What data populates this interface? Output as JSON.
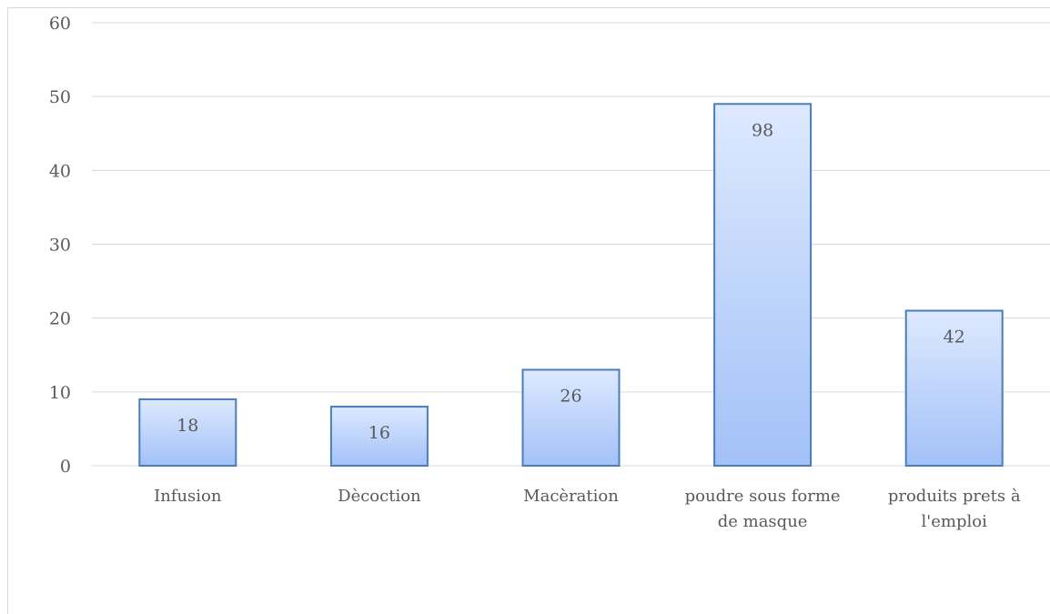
{
  "chart_data": {
    "type": "bar",
    "categories": [
      [
        "Infusion"
      ],
      [
        "Dècoction"
      ],
      [
        "Macèration"
      ],
      [
        "poudre sous forme",
        "de masque"
      ],
      [
        "produits prets à",
        "l'emploi"
      ]
    ],
    "values": [
      9,
      8,
      13,
      49,
      21
    ],
    "data_labels": [
      "18",
      "16",
      "26",
      "98",
      "42"
    ],
    "ylim": [
      0,
      60
    ],
    "yticks": [
      "0",
      "10",
      "20",
      "30",
      "40",
      "50",
      "60"
    ],
    "grid": true,
    "legend": "none",
    "colors": {
      "bar_top": "#dde9ff",
      "bar_bottom": "#a3c1f7",
      "bar_border": "#4a7ebb",
      "grid": "#d9d9d9",
      "text": "#595959"
    }
  }
}
